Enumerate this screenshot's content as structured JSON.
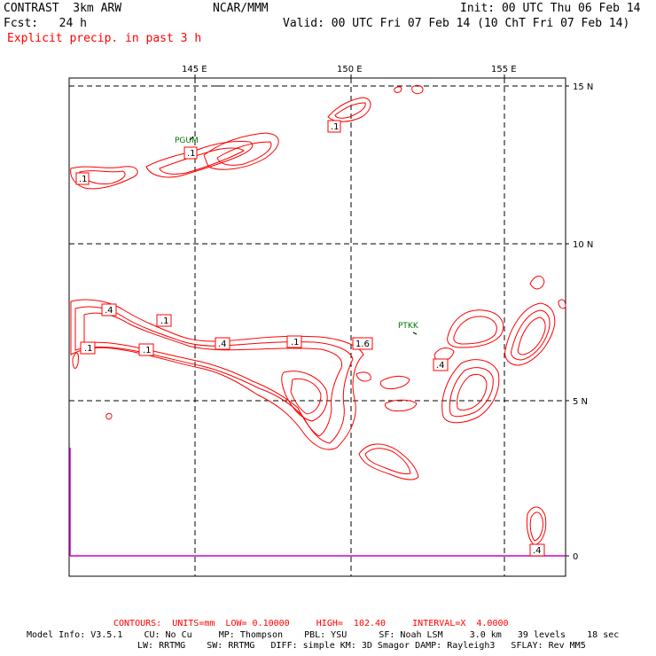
{
  "header": {
    "model": "CONTRAST  3km ARW",
    "org": "NCAR/MMM",
    "init": "Init: 00 UTC Thu 06 Feb 14",
    "fcst": "Fcst:   24 h",
    "valid": "Valid: 00 UTC Fri 07 Feb 14 (10 ChT Fri 07 Feb 14)",
    "field": "Explicit precip. in past 3 h"
  },
  "axes": {
    "lon_labels": [
      "145 E",
      "150 E",
      "155 E"
    ],
    "lat_labels": [
      "15 N",
      "10 N",
      "5 N",
      "0"
    ]
  },
  "stations": [
    "PGUM",
    "PTKK"
  ],
  "contour_labels": [
    ".1",
    ".1",
    ".1",
    ".4",
    ".1",
    ".1",
    ".1",
    ".4",
    ".1",
    "1.6",
    ".4",
    ".4"
  ],
  "footer": {
    "contours": "CONTOURS:  UNITS=mm  LOW= 0.10000     HIGH=  102.40     INTERVAL=X  4.0000",
    "model_info_1": "Model Info: V3.5.1    CU: No Cu     MP: Thompson    PBL: YSU      SF: Noah LSM     3.0 km   39 levels    18 sec",
    "model_info_2": "LW: RRTMG    SW: RRTMG   DIFF: simple KM: 3D Smagor DAMP: Rayleigh3   SFLAY: Rev MM5"
  },
  "colors": {
    "contour": "#ff0000",
    "grid": "#000000",
    "station": "#007700",
    "boundary": "#cc00cc"
  }
}
